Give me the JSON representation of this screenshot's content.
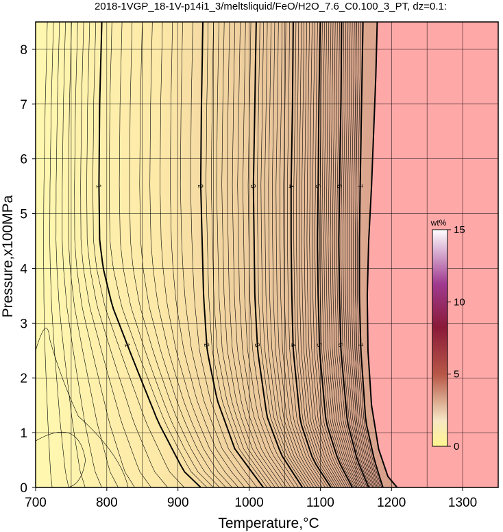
{
  "chart_data": {
    "type": "heatmap",
    "title": "2018-1VGP_18-1V-p14i1_3/meltsliquid/FeO/H2O_7.6_C0.100_3_PT, dz=0.1:",
    "xlabel": "Temperature,°C",
    "ylabel": "Pressure,x100MPa",
    "xlim": [
      700,
      1350
    ],
    "ylim": [
      0,
      8.5
    ],
    "x_ticks": [
      700,
      800,
      900,
      1000,
      1100,
      1200,
      1300
    ],
    "y_ticks": [
      0,
      1,
      2,
      3,
      4,
      5,
      6,
      7,
      8
    ],
    "grid": true,
    "colorbar": {
      "label": "wt%",
      "range": [
        0,
        15
      ],
      "ticks": [
        0,
        5,
        10,
        15
      ],
      "colors": {
        "low": "#fffbb0",
        "mid": "#a0303c",
        "high": "#6a1a6a",
        "top": "#ffffff"
      }
    },
    "no_melt_color": "#ffa8a8",
    "contour_labels": [
      "1",
      "2",
      "3",
      "4",
      "5",
      "6",
      "7"
    ],
    "labeled_contours": [
      {
        "value": 1,
        "points": [
          [
            793,
            8.5
          ],
          [
            790,
            7
          ],
          [
            789,
            5.5
          ],
          [
            790,
            4.5
          ],
          [
            795,
            4
          ],
          [
            808,
            3.3
          ],
          [
            838,
            2.3
          ],
          [
            872,
            1.2
          ],
          [
            908,
            0.3
          ],
          [
            932,
            0
          ]
        ]
      },
      {
        "value": 2,
        "points": [
          [
            935,
            8.5
          ],
          [
            933,
            7
          ],
          [
            932,
            5.5
          ],
          [
            934,
            4.5
          ],
          [
            936,
            3.5
          ],
          [
            941,
            2.5
          ],
          [
            955,
            1.6
          ],
          [
            980,
            0.7
          ],
          [
            1020,
            0
          ]
        ]
      },
      {
        "value": 3,
        "points": [
          [
            1010,
            8.5
          ],
          [
            1008,
            7
          ],
          [
            1006,
            5.5
          ],
          [
            1007,
            4.5
          ],
          [
            1008,
            3.5
          ],
          [
            1012,
            2.5
          ],
          [
            1025,
            1.3
          ],
          [
            1045,
            0.6
          ],
          [
            1075,
            0
          ]
        ]
      },
      {
        "value": 4,
        "points": [
          [
            1062,
            8.5
          ],
          [
            1061,
            7
          ],
          [
            1059,
            5.5
          ],
          [
            1059,
            4.5
          ],
          [
            1060,
            3.5
          ],
          [
            1062,
            2.5
          ],
          [
            1072,
            1.2
          ],
          [
            1090,
            0.5
          ],
          [
            1115,
            0
          ]
        ]
      },
      {
        "value": 5,
        "points": [
          [
            1100,
            8.5
          ],
          [
            1098,
            7
          ],
          [
            1097,
            5.5
          ],
          [
            1096,
            4.5
          ],
          [
            1097,
            3.5
          ],
          [
            1099,
            2.5
          ],
          [
            1108,
            1.2
          ],
          [
            1125,
            0.5
          ],
          [
            1145,
            0
          ]
        ]
      },
      {
        "value": 6,
        "points": [
          [
            1130,
            8.5
          ],
          [
            1129,
            7
          ],
          [
            1127,
            5.5
          ],
          [
            1126,
            4.5
          ],
          [
            1127,
            3.5
          ],
          [
            1129,
            2.5
          ],
          [
            1138,
            1.2
          ],
          [
            1152,
            0.5
          ],
          [
            1168,
            0
          ]
        ]
      },
      {
        "value": 7,
        "points": [
          [
            1160,
            8.5
          ],
          [
            1158,
            7
          ],
          [
            1156,
            5.5
          ],
          [
            1155,
            4.5
          ],
          [
            1155,
            3.5
          ],
          [
            1157,
            2.5
          ],
          [
            1164,
            1.2
          ],
          [
            1176,
            0.5
          ],
          [
            1188,
            0
          ]
        ]
      }
    ],
    "solidus_boundary": [
      [
        1180,
        8.5
      ],
      [
        1178,
        7.5
      ],
      [
        1175,
        6.5
      ],
      [
        1172,
        5.5
      ],
      [
        1168,
        4.5
      ],
      [
        1166,
        3.5
      ],
      [
        1167,
        2.5
      ],
      [
        1172,
        1.5
      ],
      [
        1182,
        0.7
      ],
      [
        1195,
        0.2
      ],
      [
        1208,
        0
      ]
    ]
  }
}
